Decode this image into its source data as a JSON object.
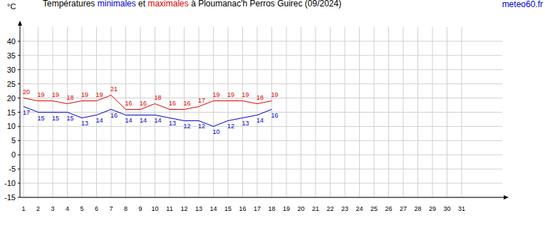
{
  "chart_data": {
    "type": "line",
    "title": "Températures",
    "annotations": [
      "et",
      "à Ploumanac'h Perros Guirec (09/2024)",
      "meteo60.fr"
    ],
    "y_label": "°C",
    "categories": [
      1,
      2,
      3,
      4,
      5,
      6,
      7,
      8,
      9,
      10,
      11,
      12,
      13,
      14,
      15,
      16,
      17,
      18,
      19,
      20,
      21,
      22,
      23,
      24,
      25,
      26,
      27,
      28,
      29,
      30,
      31
    ],
    "series": [
      {
        "name": "minimales",
        "color": "#0000cc",
        "values": [
          17,
          15,
          15,
          15,
          13,
          14,
          16,
          14,
          14,
          14,
          13,
          12,
          12,
          10,
          12,
          13,
          14,
          16,
          null,
          null,
          null,
          null,
          null,
          null,
          null,
          null,
          null,
          null,
          null,
          null,
          null
        ]
      },
      {
        "name": "maximales",
        "color": "#dd0000",
        "values": [
          20,
          19,
          19,
          18,
          19,
          19,
          21,
          16,
          16,
          18,
          16,
          16,
          17,
          19,
          19,
          19,
          18,
          19,
          null,
          null,
          null,
          null,
          null,
          null,
          null,
          null,
          null,
          null,
          null,
          null,
          null
        ]
      }
    ],
    "ylim": [
      -15,
      45
    ],
    "yticks": [
      -15,
      -10,
      -5,
      0,
      5,
      10,
      15,
      20,
      25,
      30,
      35,
      40
    ],
    "grid": true,
    "data_labels": true
  }
}
